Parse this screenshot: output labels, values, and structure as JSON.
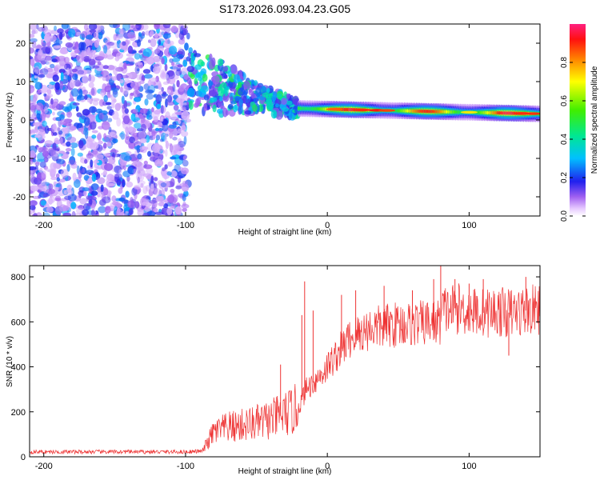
{
  "chart_data": [
    {
      "type": "heatmap",
      "title": "S173.2026.093.04.23.G05",
      "xlabel": "Height of straight line (km)",
      "ylabel": "Frequency (Hz)",
      "xlim": [
        -210,
        150
      ],
      "ylim": [
        -25,
        25
      ],
      "x_ticks": [
        -200,
        -100,
        0,
        100
      ],
      "y_ticks": [
        -20,
        -10,
        0,
        10,
        20
      ],
      "x_tick_labels": [
        "-200",
        "-100",
        "0",
        "100"
      ],
      "y_tick_labels": [
        "-20",
        "-10",
        "0",
        "10",
        "20"
      ],
      "colorbar": {
        "label": "Normalized spectral amplitude",
        "range": [
          0,
          1
        ],
        "ticks": [
          0,
          0.2,
          0.4,
          0.6,
          0.8
        ],
        "tick_labels": [
          "0.0",
          "0.2",
          "0.4",
          "0.6",
          "0.8"
        ]
      },
      "regions": [
        {
          "name": "noise",
          "x_range": [
            -210,
            -98
          ],
          "freq_range": [
            -25,
            25
          ],
          "amplitude_range": [
            0.05,
            0.3
          ]
        },
        {
          "name": "transition",
          "x_range": [
            -98,
            -20
          ],
          "freq_center_start": 10,
          "freq_center_end": 3,
          "amplitude_range": [
            0.1,
            0.5
          ]
        },
        {
          "name": "signal",
          "x_range": [
            -20,
            150
          ],
          "freq_center_start": 3,
          "freq_center_end": 1.6,
          "amplitude_peak": 0.92
        }
      ]
    },
    {
      "type": "line",
      "xlabel": "Height of straight line (km)",
      "ylabel": "SNR (10 * v/v)",
      "xlim": [
        -210,
        150
      ],
      "ylim": [
        0,
        850
      ],
      "x_ticks": [
        -200,
        -100,
        0,
        100
      ],
      "y_ticks": [
        0,
        200,
        400,
        600,
        800
      ],
      "x_tick_labels": [
        "-200",
        "-100",
        "0",
        "100"
      ],
      "y_tick_labels": [
        "0",
        "200",
        "400",
        "600",
        "800"
      ],
      "color": "#ee3333",
      "x": [
        -210,
        -150,
        -100,
        -88,
        -85,
        -80,
        -70,
        -60,
        -50,
        -40,
        -30,
        -25,
        -20,
        -15,
        -10,
        -5,
        0,
        5,
        10,
        15,
        20,
        30,
        40,
        50,
        60,
        70,
        80,
        81,
        90,
        100,
        110,
        120,
        130,
        140,
        150
      ],
      "values": [
        22,
        22,
        22,
        25,
        60,
        110,
        130,
        140,
        150,
        165,
        190,
        200,
        220,
        300,
        330,
        360,
        400,
        440,
        480,
        520,
        540,
        570,
        580,
        590,
        590,
        595,
        600,
        650,
        660,
        650,
        640,
        645,
        640,
        650,
        655
      ],
      "spikes": [
        {
          "x": -33,
          "value": 410
        },
        {
          "x": -18,
          "value": 630
        },
        {
          "x": -16,
          "value": 780
        },
        {
          "x": -10,
          "value": 650
        },
        {
          "x": 10,
          "value": 720
        },
        {
          "x": 20,
          "value": 740
        },
        {
          "x": 40,
          "value": 760
        },
        {
          "x": 60,
          "value": 740
        },
        {
          "x": 75,
          "value": 790
        },
        {
          "x": 80,
          "value": 850
        },
        {
          "x": 90,
          "value": 790
        },
        {
          "x": 100,
          "value": 770
        },
        {
          "x": 110,
          "value": 790
        },
        {
          "x": 128,
          "value": 450
        },
        {
          "x": 140,
          "value": 800
        }
      ]
    }
  ]
}
